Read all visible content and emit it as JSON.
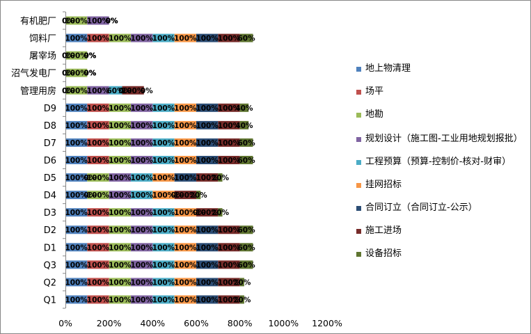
{
  "chart_data": {
    "type": "bar",
    "orientation": "horizontal",
    "stacked": true,
    "xlim": [
      0,
      12
    ],
    "x_ticks": [
      "0%",
      "200%",
      "400%",
      "600%",
      "800%",
      "1000%",
      "1200%"
    ],
    "categories": [
      "Q1",
      "Q2",
      "Q3",
      "D1",
      "D2",
      "D3",
      "D4",
      "D5",
      "D6",
      "D7",
      "D8",
      "D9",
      "管理用房",
      "沼气发电厂",
      "屠宰场",
      "饲料厂",
      "有机肥厂"
    ],
    "series": [
      {
        "name": "地上物清理",
        "color": "#4F81BD",
        "values": [
          1,
          1,
          1,
          1,
          1,
          1,
          1,
          1,
          1,
          1,
          1,
          1,
          0,
          0,
          0,
          1,
          0
        ],
        "labels": [
          "100%",
          "100%",
          "100%",
          "100%",
          "100%",
          "100%",
          "100%",
          "100%",
          "100%",
          "100%",
          "100%",
          "100%",
          "0%",
          "0%",
          "0%",
          "100%",
          "0%"
        ]
      },
      {
        "name": "场平",
        "color": "#C0504D",
        "values": [
          1,
          1,
          1,
          1,
          1,
          1,
          0,
          0,
          1,
          1,
          1,
          1,
          0,
          0,
          0,
          1,
          0
        ],
        "labels": [
          "100%",
          "100%",
          "100%",
          "100%",
          "100%",
          "100%",
          "0%",
          "0%",
          "100%",
          "100%",
          "100%",
          "100%",
          "0%",
          "0%",
          "0%",
          "100%",
          "0%"
        ]
      },
      {
        "name": "地勘",
        "color": "#9BBB59",
        "values": [
          1,
          1,
          1,
          1,
          1,
          1,
          1,
          1,
          1,
          1,
          1,
          1,
          1,
          1,
          1,
          1,
          1
        ],
        "labels": [
          "100%",
          "100%",
          "100%",
          "100%",
          "100%",
          "100%",
          "100%",
          "100%",
          "100%",
          "100%",
          "100%",
          "100%",
          "100%",
          "100%",
          "100%",
          "100%",
          "100%"
        ]
      },
      {
        "name": "规划设计（施工图-工业用地规划报批）",
        "color": "#8064A2",
        "values": [
          1,
          1,
          1,
          1,
          1,
          1,
          1,
          1,
          1,
          1,
          1,
          1,
          1,
          0,
          0,
          1,
          1
        ],
        "labels": [
          "100%",
          "100%",
          "100%",
          "100%",
          "100%",
          "100%",
          "100%",
          "100%",
          "100%",
          "100%",
          "100%",
          "100%",
          "100%",
          "0%",
          "0%",
          "100%",
          "100%"
        ]
      },
      {
        "name": "工程预算（预算-控制价-核对-财审）",
        "color": "#4BACC6",
        "values": [
          1,
          1,
          1,
          1,
          1,
          1,
          1,
          1,
          1,
          1,
          1,
          1,
          0.6,
          0,
          0,
          1,
          0
        ],
        "labels": [
          "100%",
          "100%",
          "100%",
          "100%",
          "100%",
          "100%",
          "100%",
          "100%",
          "100%",
          "100%",
          "100%",
          "100%",
          "60%",
          "0%",
          "0%",
          "100%",
          "0%"
        ]
      },
      {
        "name": "挂网招标",
        "color": "#F79646",
        "values": [
          1,
          1,
          1,
          1,
          1,
          1,
          1,
          1,
          1,
          1,
          1,
          1,
          0,
          0,
          0,
          1,
          0
        ],
        "labels": [
          "100%",
          "100%",
          "100%",
          "100%",
          "100%",
          "100%",
          "100%",
          "100%",
          "100%",
          "100%",
          "100%",
          "100%",
          "0%",
          "0%",
          "0%",
          "100%",
          "0%"
        ]
      },
      {
        "name": "合同订立（合同订立-公示）",
        "color": "#2C4D75",
        "values": [
          1,
          1,
          1,
          1,
          1,
          0,
          0,
          1,
          1,
          1,
          1,
          1,
          0,
          0,
          0,
          1,
          0
        ],
        "labels": [
          "100%",
          "100%",
          "100%",
          "100%",
          "100%",
          "0%",
          "0%",
          "100%",
          "100%",
          "100%",
          "100%",
          "100%",
          "0%",
          "0%",
          "0%",
          "100%",
          "0%"
        ]
      },
      {
        "name": "施工进场",
        "color": "#772C2A",
        "values": [
          1,
          1,
          1,
          1,
          1,
          1,
          1,
          1,
          1,
          1,
          1,
          1,
          1,
          0,
          0,
          1,
          0
        ],
        "labels": [
          "100%",
          "100%",
          "100%",
          "100%",
          "100%",
          "100%",
          "100%",
          "100%",
          "100%",
          "100%",
          "100%",
          "100%",
          "100%",
          "0%",
          "0%",
          "100%",
          "0%"
        ]
      },
      {
        "name": "设备招标",
        "color": "#5F7530",
        "values": [
          0.2,
          0.2,
          0.6,
          0.6,
          0.6,
          0.2,
          0.2,
          0.2,
          0.6,
          0.6,
          0.4,
          0.4,
          0,
          0,
          0,
          0.6,
          0
        ],
        "labels": [
          "20%",
          "20%",
          "60%",
          "60%",
          "60%",
          "20%",
          "20%",
          "20%",
          "60%",
          "60%",
          "40%",
          "40%",
          "0%",
          "0%",
          "0%",
          "60%",
          "0%"
        ]
      }
    ],
    "legend_position": "right",
    "grid": false
  }
}
